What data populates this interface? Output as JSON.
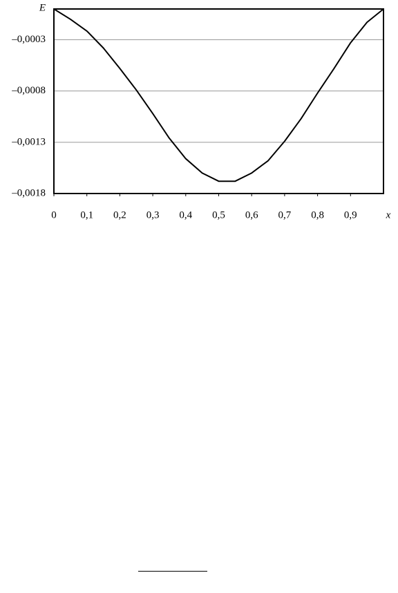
{
  "chart_data": {
    "type": "line",
    "xlabel": "x",
    "ylabel": "E",
    "x": [
      0,
      0.05,
      0.1,
      0.15,
      0.2,
      0.25,
      0.3,
      0.35,
      0.4,
      0.45,
      0.5,
      0.55,
      0.6,
      0.65,
      0.7,
      0.75,
      0.8,
      0.85,
      0.9,
      0.95,
      1
    ],
    "values": [
      0,
      -0.0001,
      -0.000215,
      -0.00038,
      -0.00058,
      -0.00079,
      -0.00102,
      -0.00126,
      -0.00146,
      -0.0016,
      -0.00168,
      -0.00168,
      -0.0016,
      -0.00148,
      -0.00129,
      -0.00107,
      -0.00082,
      -0.00058,
      -0.00033,
      -0.00013,
      0
    ],
    "color": "#000000",
    "xlim": [
      0,
      1
    ],
    "xticks": [
      0,
      {
        "value": 0.1,
        "label": "0,1"
      },
      {
        "value": 0.2,
        "label": "0,2"
      },
      {
        "value": 0.3,
        "label": "0,3"
      },
      {
        "value": 0.4,
        "label": "0,4"
      },
      {
        "value": 0.5,
        "label": "0,5"
      },
      {
        "value": 0.6,
        "label": "0,6"
      },
      {
        "value": 0.7,
        "label": "0,7"
      },
      {
        "value": 0.8,
        "label": "0,8"
      },
      {
        "value": 0.9,
        "label": "0,9"
      }
    ],
    "ylim": [
      -0.0018,
      0
    ],
    "yticks": [
      {
        "value": -0.0003,
        "label": "–0,0003"
      },
      {
        "value": -0.0008,
        "label": "–0,0008"
      },
      {
        "value": -0.0013,
        "label": "–0,0013"
      },
      {
        "value": -0.0018,
        "label": "–0,0018"
      }
    ],
    "grid": true
  }
}
